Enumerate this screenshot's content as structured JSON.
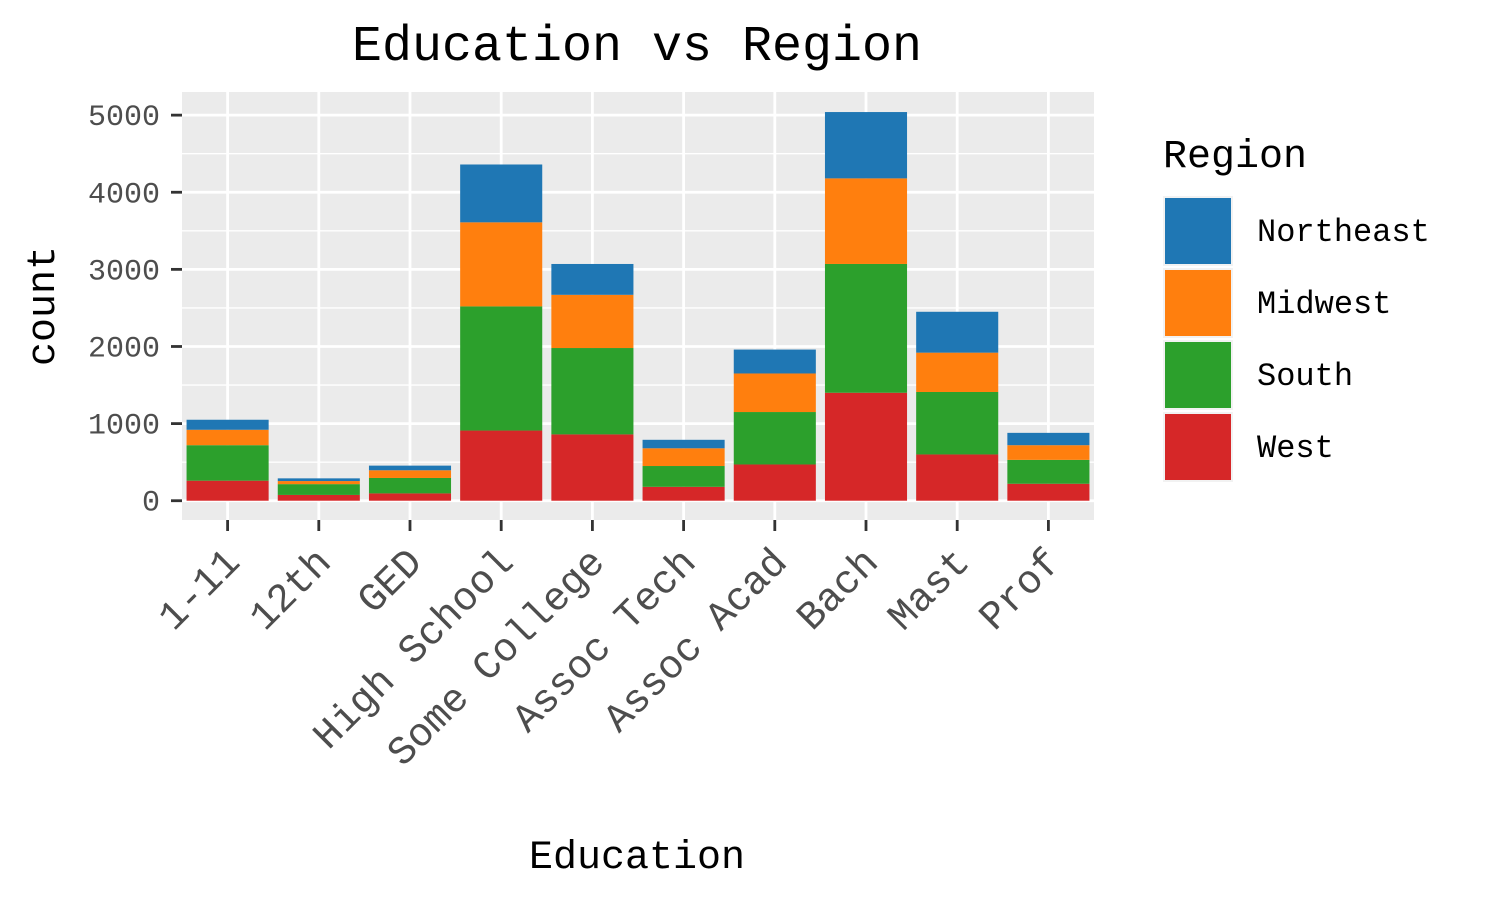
{
  "chart_data": {
    "type": "bar",
    "stacked": true,
    "title": "Education vs Region",
    "xlabel": "Education",
    "ylabel": "count",
    "ylim": [
      -250,
      5300
    ],
    "yticks": [
      0,
      1000,
      2000,
      3000,
      4000,
      5000
    ],
    "categories": [
      "1-11",
      "12th",
      "GED",
      "High School",
      "Some College",
      "Assoc Tech",
      "Assoc Acad",
      "Bach",
      "Mast",
      "Prof"
    ],
    "series": [
      {
        "name": "West",
        "color": "#d62728",
        "values": [
          260,
          75,
          95,
          910,
          860,
          180,
          470,
          1400,
          600,
          220
        ]
      },
      {
        "name": "South",
        "color": "#2ca02c",
        "values": [
          460,
          140,
          200,
          1610,
          1120,
          270,
          680,
          1670,
          810,
          310
        ]
      },
      {
        "name": "Midwest",
        "color": "#ff7f0e",
        "values": [
          200,
          40,
          100,
          1090,
          690,
          230,
          500,
          1110,
          510,
          190
        ]
      },
      {
        "name": "Northeast",
        "color": "#1f77b4",
        "values": [
          130,
          35,
          60,
          750,
          400,
          110,
          310,
          860,
          530,
          160
        ]
      }
    ],
    "legend": {
      "title": "Region",
      "order": [
        "Northeast",
        "Midwest",
        "South",
        "West"
      ],
      "position": "right"
    },
    "grid": true,
    "panel_background": "#ebebeb"
  }
}
